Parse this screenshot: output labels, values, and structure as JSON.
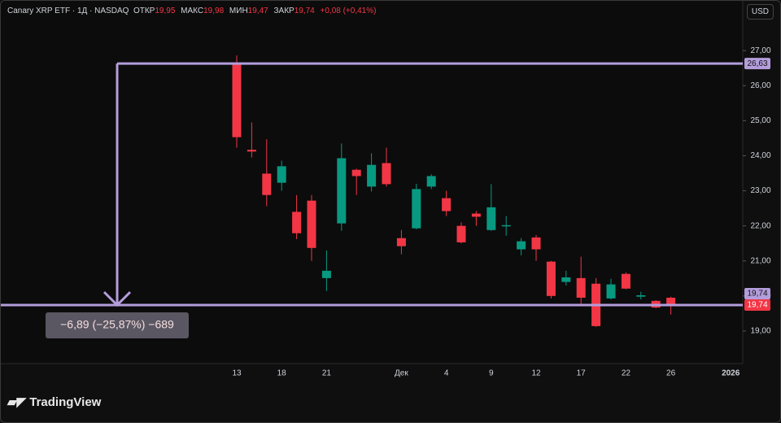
{
  "header": {
    "symbol": "Canary XRP ETF · 1Д · NASDAQ",
    "open_label": "ОТКР",
    "open": "19,95",
    "high_label": "МАКС",
    "high": "19,98",
    "low_label": "МИН",
    "low": "19,47",
    "close_label": "ЗАКР",
    "close": "19,74",
    "change": "+0,08 (+0,41%)",
    "currency": "USD"
  },
  "chart_data": {
    "type": "candlestick",
    "categories": [
      "13",
      null,
      null,
      "18",
      null,
      null,
      "21",
      null,
      null,
      null,
      null,
      "Дек",
      null,
      null,
      "4",
      null,
      null,
      "9",
      null,
      null,
      "12",
      null,
      null,
      "17",
      null,
      null,
      "22",
      null,
      null,
      "26",
      null,
      null,
      null,
      "2026"
    ],
    "open": [
      26.63,
      24.17,
      23.49,
      23.23,
      22.4,
      22.72,
      20.51,
      22.07,
      23.6,
      23.12,
      23.79,
      21.65,
      21.93,
      23.12,
      22.79,
      22.0,
      22.35,
      21.88,
      22.0,
      21.33,
      21.67,
      20.98,
      20.4,
      20.51,
      20.35,
      19.93,
      20.63,
      19.98,
      19.86,
      19.95,
      null,
      null,
      null,
      null
    ],
    "high": [
      26.86,
      24.95,
      24.47,
      23.86,
      22.88,
      22.88,
      21.3,
      24.35,
      23.63,
      24.07,
      24.23,
      21.88,
      23.2,
      23.47,
      23.0,
      22.1,
      22.42,
      23.19,
      22.28,
      21.65,
      21.74,
      21.0,
      20.72,
      21.12,
      20.51,
      20.49,
      20.67,
      20.12,
      19.88,
      19.98,
      null,
      null,
      null,
      null
    ],
    "low": [
      24.23,
      23.95,
      22.56,
      23.0,
      21.62,
      21.0,
      20.14,
      21.86,
      22.88,
      22.98,
      23.12,
      21.19,
      21.9,
      23.05,
      22.28,
      21.5,
      22.0,
      21.86,
      21.72,
      21.16,
      21.0,
      19.93,
      20.3,
      19.74,
      19.12,
      19.9,
      20.19,
      19.9,
      19.65,
      19.47,
      null,
      null,
      null,
      null
    ],
    "close": [
      24.53,
      24.12,
      22.88,
      23.7,
      21.79,
      21.37,
      20.72,
      23.93,
      23.42,
      23.74,
      23.19,
      21.42,
      23.05,
      23.42,
      22.42,
      21.53,
      22.26,
      22.53,
      22.02,
      21.56,
      21.33,
      20.0,
      20.53,
      19.95,
      19.14,
      20.33,
      20.21,
      20.02,
      19.67,
      19.74,
      null,
      null,
      null,
      null
    ],
    "up_color": "#089981",
    "down_color": "#f23645",
    "ylim": [
      18.07,
      28.42
    ],
    "yticks": [
      {
        "value": 19,
        "label": "19,00"
      },
      {
        "value": 20,
        "label": "20,00"
      },
      {
        "value": 21,
        "label": "21,00"
      },
      {
        "value": 22,
        "label": "22,00"
      },
      {
        "value": 23,
        "label": "23,00"
      },
      {
        "value": 24,
        "label": "24,00"
      },
      {
        "value": 25,
        "label": "25,00"
      },
      {
        "value": 26,
        "label": "26,00"
      },
      {
        "value": 27,
        "label": "27,00"
      }
    ],
    "measure": {
      "from": {
        "value": 26.63,
        "label": "26,63"
      },
      "to": {
        "value": 19.74,
        "label": "19,74"
      },
      "text": "−6,89 (−25,87%) −689",
      "color": "#b39ddb"
    },
    "last_price": {
      "value": 19.74,
      "label": "19,74"
    }
  },
  "footer": {
    "logo": "TradingView"
  }
}
